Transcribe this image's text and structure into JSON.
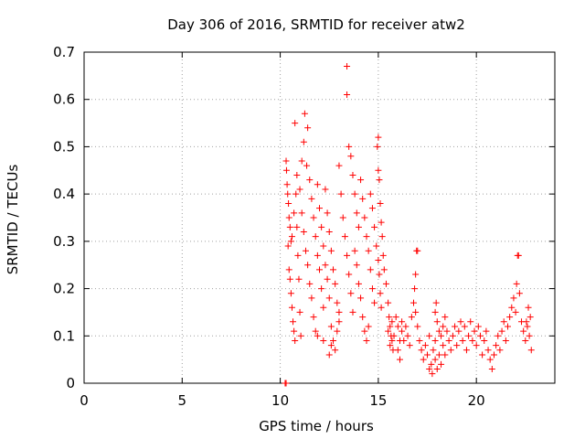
{
  "chart_data": {
    "type": "scatter",
    "title": "Day 306 of 2016, SRMTID for receiver atw2",
    "xlabel": "GPS time / hours",
    "ylabel": "SRMTID / TECUs",
    "xlim": [
      0,
      24
    ],
    "ylim": [
      0,
      0.7
    ],
    "xticks": [
      0,
      5,
      10,
      15,
      20
    ],
    "xtick_labels": [
      "0",
      "5",
      "10",
      "15",
      "20"
    ],
    "yticks": [
      0,
      0.1,
      0.2,
      0.3,
      0.4,
      0.5,
      0.6,
      0.7
    ],
    "ytick_labels": [
      "0",
      "0.1",
      "0.2",
      "0.3",
      "0.4",
      "0.5",
      "0.6",
      "0.7"
    ],
    "grid": true,
    "marker": "+",
    "color": "#ff0000",
    "series": [
      {
        "name": "SRMTID",
        "points": [
          [
            10.25,
            0.0
          ],
          [
            10.3,
            0.0
          ],
          [
            10.3,
            0.47
          ],
          [
            10.32,
            0.45
          ],
          [
            10.35,
            0.42
          ],
          [
            10.38,
            0.4
          ],
          [
            10.42,
            0.38
          ],
          [
            10.45,
            0.35
          ],
          [
            10.5,
            0.33
          ],
          [
            10.55,
            0.3
          ],
          [
            10.4,
            0.29
          ],
          [
            10.45,
            0.24
          ],
          [
            10.5,
            0.22
          ],
          [
            10.55,
            0.19
          ],
          [
            10.6,
            0.16
          ],
          [
            10.65,
            0.13
          ],
          [
            10.7,
            0.11
          ],
          [
            10.75,
            0.09
          ],
          [
            10.6,
            0.31
          ],
          [
            10.7,
            0.36
          ],
          [
            10.8,
            0.4
          ],
          [
            10.85,
            0.33
          ],
          [
            10.9,
            0.27
          ],
          [
            10.95,
            0.22
          ],
          [
            11.0,
            0.15
          ],
          [
            11.05,
            0.1
          ],
          [
            10.75,
            0.55
          ],
          [
            10.85,
            0.44
          ],
          [
            11.0,
            0.41
          ],
          [
            11.1,
            0.47
          ],
          [
            11.2,
            0.51
          ],
          [
            11.25,
            0.57
          ],
          [
            11.35,
            0.46
          ],
          [
            11.4,
            0.54
          ],
          [
            11.1,
            0.36
          ],
          [
            11.2,
            0.32
          ],
          [
            11.3,
            0.28
          ],
          [
            11.4,
            0.25
          ],
          [
            11.5,
            0.21
          ],
          [
            11.6,
            0.18
          ],
          [
            11.7,
            0.14
          ],
          [
            11.8,
            0.11
          ],
          [
            11.5,
            0.43
          ],
          [
            11.6,
            0.39
          ],
          [
            11.7,
            0.35
          ],
          [
            11.8,
            0.31
          ],
          [
            11.9,
            0.27
          ],
          [
            12.0,
            0.24
          ],
          [
            12.1,
            0.2
          ],
          [
            12.2,
            0.16
          ],
          [
            11.9,
            0.42
          ],
          [
            12.0,
            0.37
          ],
          [
            12.1,
            0.33
          ],
          [
            12.2,
            0.29
          ],
          [
            12.3,
            0.25
          ],
          [
            12.4,
            0.22
          ],
          [
            12.5,
            0.18
          ],
          [
            12.6,
            0.12
          ],
          [
            12.3,
            0.41
          ],
          [
            12.4,
            0.36
          ],
          [
            12.5,
            0.32
          ],
          [
            12.6,
            0.28
          ],
          [
            12.7,
            0.24
          ],
          [
            12.8,
            0.21
          ],
          [
            12.9,
            0.17
          ],
          [
            13.0,
            0.13
          ],
          [
            12.7,
            0.09
          ],
          [
            12.8,
            0.07
          ],
          [
            12.9,
            0.11
          ],
          [
            13.0,
            0.15
          ],
          [
            12.6,
            0.08
          ],
          [
            12.5,
            0.06
          ],
          [
            12.2,
            0.09
          ],
          [
            11.9,
            0.1
          ],
          [
            13.0,
            0.46
          ],
          [
            13.1,
            0.4
          ],
          [
            13.2,
            0.35
          ],
          [
            13.3,
            0.31
          ],
          [
            13.4,
            0.27
          ],
          [
            13.5,
            0.23
          ],
          [
            13.6,
            0.19
          ],
          [
            13.7,
            0.15
          ],
          [
            13.4,
            0.67
          ],
          [
            13.4,
            0.61
          ],
          [
            13.5,
            0.5
          ],
          [
            13.6,
            0.48
          ],
          [
            13.7,
            0.44
          ],
          [
            13.8,
            0.4
          ],
          [
            13.9,
            0.36
          ],
          [
            14.0,
            0.33
          ],
          [
            13.8,
            0.28
          ],
          [
            13.9,
            0.25
          ],
          [
            14.0,
            0.21
          ],
          [
            14.1,
            0.18
          ],
          [
            14.2,
            0.14
          ],
          [
            14.3,
            0.11
          ],
          [
            14.4,
            0.09
          ],
          [
            14.5,
            0.12
          ],
          [
            14.1,
            0.43
          ],
          [
            14.2,
            0.39
          ],
          [
            14.3,
            0.35
          ],
          [
            14.4,
            0.31
          ],
          [
            14.5,
            0.28
          ],
          [
            14.6,
            0.24
          ],
          [
            14.7,
            0.2
          ],
          [
            14.8,
            0.17
          ],
          [
            14.6,
            0.4
          ],
          [
            14.7,
            0.37
          ],
          [
            14.8,
            0.33
          ],
          [
            14.9,
            0.29
          ],
          [
            15.0,
            0.26
          ],
          [
            15.05,
            0.23
          ],
          [
            15.1,
            0.19
          ],
          [
            15.15,
            0.16
          ],
          [
            14.95,
            0.5
          ],
          [
            15.0,
            0.52
          ],
          [
            15.0,
            0.45
          ],
          [
            15.05,
            0.43
          ],
          [
            15.1,
            0.38
          ],
          [
            15.15,
            0.34
          ],
          [
            15.2,
            0.31
          ],
          [
            15.25,
            0.27
          ],
          [
            15.3,
            0.24
          ],
          [
            15.4,
            0.21
          ],
          [
            15.5,
            0.17
          ],
          [
            15.55,
            0.14
          ],
          [
            15.6,
            0.12
          ],
          [
            15.65,
            0.1
          ],
          [
            15.7,
            0.09
          ],
          [
            15.75,
            0.07
          ],
          [
            15.5,
            0.11
          ],
          [
            15.6,
            0.08
          ],
          [
            15.7,
            0.13
          ],
          [
            15.8,
            0.1
          ],
          [
            15.9,
            0.14
          ],
          [
            16.0,
            0.12
          ],
          [
            16.1,
            0.09
          ],
          [
            16.2,
            0.11
          ],
          [
            16.0,
            0.07
          ],
          [
            16.1,
            0.05
          ],
          [
            16.2,
            0.13
          ],
          [
            16.3,
            0.09
          ],
          [
            16.4,
            0.12
          ],
          [
            16.5,
            0.1
          ],
          [
            16.6,
            0.08
          ],
          [
            16.7,
            0.14
          ],
          [
            16.8,
            0.17
          ],
          [
            16.85,
            0.2
          ],
          [
            16.9,
            0.23
          ],
          [
            16.95,
            0.28
          ],
          [
            17.0,
            0.28
          ],
          [
            16.9,
            0.15
          ],
          [
            17.0,
            0.12
          ],
          [
            17.1,
            0.09
          ],
          [
            17.2,
            0.07
          ],
          [
            17.3,
            0.05
          ],
          [
            17.4,
            0.08
          ],
          [
            17.5,
            0.06
          ],
          [
            17.6,
            0.1
          ],
          [
            17.7,
            0.04
          ],
          [
            17.8,
            0.07
          ],
          [
            17.9,
            0.09
          ],
          [
            17.6,
            0.03
          ],
          [
            17.75,
            0.02
          ],
          [
            17.9,
            0.05
          ],
          [
            18.0,
            0.03
          ],
          [
            18.1,
            0.06
          ],
          [
            18.2,
            0.04
          ],
          [
            18.3,
            0.08
          ],
          [
            18.4,
            0.06
          ],
          [
            17.9,
            0.15
          ],
          [
            17.95,
            0.17
          ],
          [
            18.0,
            0.13
          ],
          [
            18.1,
            0.11
          ],
          [
            18.2,
            0.1
          ],
          [
            18.3,
            0.12
          ],
          [
            18.4,
            0.14
          ],
          [
            18.5,
            0.11
          ],
          [
            18.6,
            0.09
          ],
          [
            18.7,
            0.07
          ],
          [
            18.8,
            0.1
          ],
          [
            18.9,
            0.12
          ],
          [
            19.0,
            0.08
          ],
          [
            19.1,
            0.11
          ],
          [
            19.2,
            0.13
          ],
          [
            19.3,
            0.09
          ],
          [
            19.4,
            0.12
          ],
          [
            19.5,
            0.07
          ],
          [
            19.6,
            0.1
          ],
          [
            19.7,
            0.13
          ],
          [
            19.8,
            0.09
          ],
          [
            19.9,
            0.11
          ],
          [
            20.0,
            0.08
          ],
          [
            20.1,
            0.12
          ],
          [
            20.2,
            0.1
          ],
          [
            20.3,
            0.06
          ],
          [
            20.4,
            0.09
          ],
          [
            20.5,
            0.11
          ],
          [
            20.6,
            0.07
          ],
          [
            20.7,
            0.05
          ],
          [
            20.8,
            0.03
          ],
          [
            20.9,
            0.06
          ],
          [
            21.0,
            0.08
          ],
          [
            21.1,
            0.1
          ],
          [
            21.2,
            0.07
          ],
          [
            21.3,
            0.11
          ],
          [
            21.4,
            0.13
          ],
          [
            21.5,
            0.09
          ],
          [
            21.6,
            0.12
          ],
          [
            21.7,
            0.14
          ],
          [
            21.8,
            0.16
          ],
          [
            21.9,
            0.18
          ],
          [
            22.0,
            0.15
          ],
          [
            22.05,
            0.21
          ],
          [
            22.1,
            0.27
          ],
          [
            22.15,
            0.27
          ],
          [
            22.2,
            0.19
          ],
          [
            22.3,
            0.13
          ],
          [
            22.4,
            0.11
          ],
          [
            22.5,
            0.09
          ],
          [
            22.6,
            0.12
          ],
          [
            22.7,
            0.1
          ],
          [
            22.8,
            0.07
          ],
          [
            22.75,
            0.14
          ],
          [
            22.65,
            0.16
          ],
          [
            22.55,
            0.13
          ]
        ]
      }
    ]
  }
}
